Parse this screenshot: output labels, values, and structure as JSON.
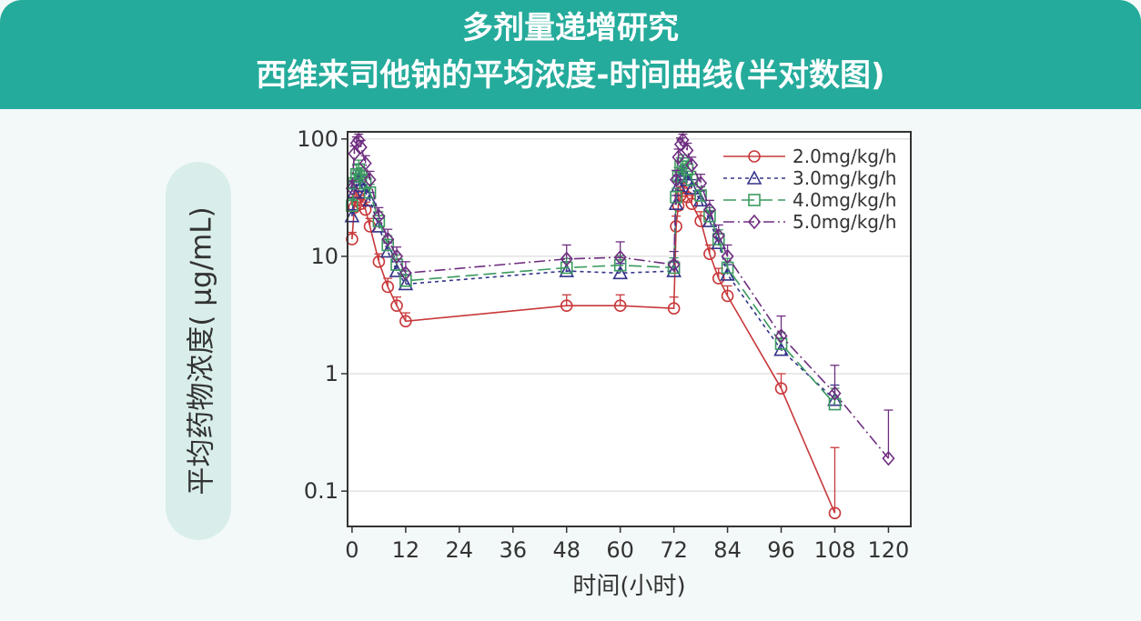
{
  "title_line1": "多剂量递增研究",
  "title_line2": "西维来司他钠的平均浓度-时间曲线(半对数图)",
  "chart_data": {
    "type": "line",
    "yscale": "log",
    "ylabel": "平均药物浓度( μg/mL)",
    "xlabel": "时间(小时)",
    "xlim": [
      -1,
      125
    ],
    "ylim": [
      0.05,
      115
    ],
    "xticks": [
      0,
      12,
      24,
      36,
      48,
      60,
      72,
      84,
      96,
      108,
      120
    ],
    "xtick_labels": [
      "0",
      "12",
      "24",
      "36",
      "48",
      "60",
      "72",
      "84",
      "96",
      "108",
      "120"
    ],
    "yticks": [
      0.1,
      1,
      10,
      100
    ],
    "ytick_labels": [
      "0.1",
      "1",
      "10",
      "100"
    ],
    "legend_position": "top-right",
    "series": [
      {
        "name": "2.0mg/kg/h",
        "color": "#c8383a",
        "marker": "circle",
        "dash": "",
        "x": [
          0,
          0.5,
          1,
          1.5,
          2,
          3,
          4,
          6,
          8,
          10,
          12,
          48,
          60,
          72,
          72.5,
          73,
          73.5,
          74,
          75,
          76,
          78,
          80,
          82,
          84,
          96,
          108
        ],
        "y": [
          14,
          26,
          30,
          32,
          28,
          25,
          18,
          9,
          5.5,
          3.8,
          2.8,
          3.8,
          3.8,
          3.6,
          18,
          27,
          33,
          36,
          32,
          28,
          20,
          10.5,
          6.5,
          4.6,
          0.75,
          0.065
        ],
        "err": [
          2,
          6,
          6,
          6,
          5,
          4,
          3,
          1.5,
          1,
          0.7,
          0.5,
          0.9,
          0.9,
          0.9,
          4,
          6,
          6,
          6,
          6,
          5,
          4,
          2,
          1.4,
          1,
          0.25,
          0.17
        ]
      },
      {
        "name": "3.0mg/kg/h",
        "color": "#33338a",
        "marker": "triangle",
        "dash": "4 4",
        "x": [
          0,
          0.5,
          1,
          1.5,
          2,
          3,
          4,
          6,
          8,
          10,
          12,
          48,
          60,
          72,
          72.5,
          73,
          73.5,
          74,
          75,
          76,
          78,
          80,
          82,
          84,
          96,
          108
        ],
        "y": [
          22,
          35,
          42,
          45,
          40,
          35,
          30,
          18,
          11,
          7.5,
          5.8,
          7.5,
          7.2,
          7.5,
          28,
          40,
          48,
          50,
          45,
          38,
          30,
          20,
          13,
          7,
          1.6,
          0.6
        ],
        "err": [
          3,
          8,
          8,
          9,
          8,
          6,
          5,
          3,
          2,
          1.5,
          1.2,
          1.5,
          1.5,
          1.6,
          5,
          8,
          9,
          9,
          8,
          7,
          6,
          4,
          2.5,
          1.5,
          0.4,
          0.2
        ]
      },
      {
        "name": "4.0mg/kg/h",
        "color": "#3b9a5f",
        "marker": "square",
        "dash": "14 6",
        "x": [
          0,
          0.5,
          1,
          1.5,
          2,
          3,
          4,
          6,
          8,
          10,
          12,
          48,
          60,
          72,
          72.5,
          73,
          73.5,
          74,
          75,
          76,
          78,
          80,
          82,
          84,
          96,
          108
        ],
        "y": [
          27,
          42,
          50,
          55,
          48,
          42,
          35,
          20,
          12.5,
          8.5,
          6.2,
          8,
          8.4,
          8,
          32,
          48,
          58,
          62,
          55,
          45,
          33,
          22,
          14,
          8,
          1.8,
          0.55
        ],
        "err": [
          4,
          9,
          10,
          11,
          9,
          8,
          6,
          4,
          2.5,
          1.8,
          1.3,
          1.6,
          1.7,
          1.7,
          6,
          9,
          11,
          11,
          10,
          8,
          6,
          4,
          2.8,
          1.6,
          0.45,
          0.2
        ]
      },
      {
        "name": "5.0mg/kg/h",
        "color": "#6f2e80",
        "marker": "diamond",
        "dash": "12 4 2 4",
        "x": [
          0,
          0.5,
          1,
          1.5,
          2,
          3,
          4,
          6,
          8,
          10,
          12,
          48,
          60,
          72,
          72.5,
          73,
          73.5,
          74,
          75,
          76,
          78,
          80,
          82,
          84,
          96,
          108,
          120
        ],
        "y": [
          38,
          75,
          92,
          98,
          85,
          62,
          45,
          22,
          14,
          10,
          7.2,
          9.5,
          9.8,
          8.5,
          45,
          70,
          90,
          98,
          80,
          60,
          42,
          25,
          15,
          10,
          2.1,
          0.68,
          0.19
        ],
        "err": [
          6,
          12,
          12,
          12,
          12,
          10,
          8,
          4,
          3,
          2,
          1.8,
          3,
          3.5,
          2.5,
          9,
          12,
          12,
          12,
          12,
          10,
          8,
          5,
          3.5,
          2.5,
          1,
          0.5,
          0.3
        ]
      }
    ]
  }
}
